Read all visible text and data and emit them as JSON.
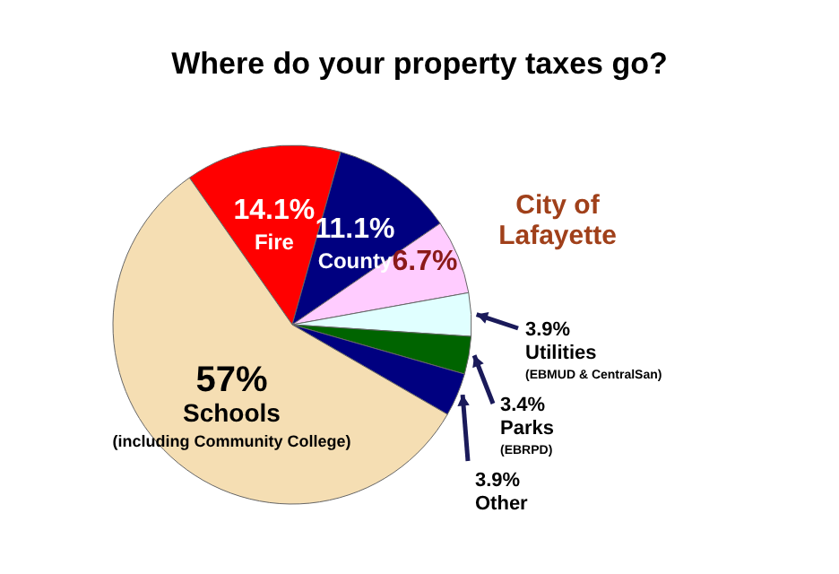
{
  "chart_data": {
    "type": "pie",
    "title": "Where do your property taxes go?",
    "categories": [
      "Fire",
      "County",
      "City of Lafayette",
      "Utilities",
      "Parks",
      "Other",
      "Schools"
    ],
    "values": [
      14.1,
      11.1,
      6.7,
      3.9,
      3.4,
      3.9,
      57
    ],
    "value_labels": [
      "14.1%",
      "11.1%",
      "6.7%",
      "3.9%",
      "3.4%",
      "3.9%",
      "57%"
    ],
    "colors": [
      "#ff0000",
      "#000080",
      "#ffccff",
      "#e0ffff",
      "#006400",
      "#000080",
      "#f5deb3"
    ],
    "annotations": [
      {
        "text": "(including Community College)",
        "x": "Schools"
      },
      {
        "text": "(EBMUD & CentralSan)",
        "x": "Utilities"
      },
      {
        "text": "(EBRPD)",
        "x": "Parks"
      }
    ],
    "legend": false
  }
}
